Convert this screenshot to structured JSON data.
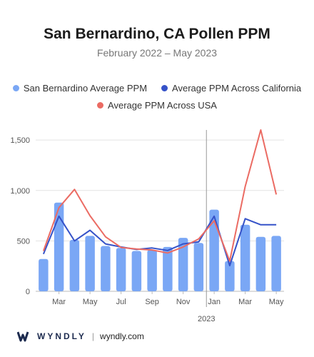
{
  "header": {
    "title": "San Bernardino, CA Pollen PPM",
    "subtitle": "February 2022 – May 2023"
  },
  "footer": {
    "brand": "WYNDLY",
    "separator": "|",
    "site": "wyndly.com"
  },
  "colors": {
    "bars": "#7aa7f5",
    "california": "#3552c8",
    "usa": "#eb6b63",
    "divider": "#999999",
    "grid": "#e3e3e3"
  },
  "chart_data": {
    "type": "bar",
    "x": [
      "2022-02",
      "2022-03",
      "2022-04",
      "2022-05",
      "2022-06",
      "2022-07",
      "2022-08",
      "2022-09",
      "2022-10",
      "2022-11",
      "2022-12",
      "2023-01",
      "2023-02",
      "2023-03",
      "2023-04",
      "2023-05"
    ],
    "tick_labels": [
      "Mar",
      "May",
      "Jul",
      "Sep",
      "Nov",
      "Jan",
      "Mar",
      "May"
    ],
    "tick_index": [
      1,
      3,
      5,
      7,
      9,
      11,
      13,
      15
    ],
    "year_label": "2023",
    "year_divider_index": 11,
    "ylim": [
      0,
      1600
    ],
    "yticks": [
      0,
      500,
      1000,
      1500
    ],
    "ytick_labels": [
      "0",
      "500",
      "1,000",
      "1,500"
    ],
    "grid": "horizontal",
    "legend_position": "top",
    "series": [
      {
        "name": "San Bernardino Average PPM",
        "type": "bar",
        "values": [
          320,
          880,
          510,
          550,
          450,
          430,
          400,
          410,
          440,
          530,
          480,
          810,
          300,
          660,
          540,
          550
        ]
      },
      {
        "name": "Average PPM Across California",
        "type": "line",
        "values": [
          370,
          745,
          500,
          605,
          470,
          440,
          415,
          430,
          405,
          470,
          490,
          745,
          255,
          720,
          660,
          660
        ]
      },
      {
        "name": "Average PPM Across USA",
        "type": "line",
        "values": [
          400,
          830,
          1010,
          750,
          540,
          435,
          420,
          410,
          380,
          440,
          520,
          700,
          300,
          1040,
          1600,
          960
        ]
      }
    ]
  }
}
